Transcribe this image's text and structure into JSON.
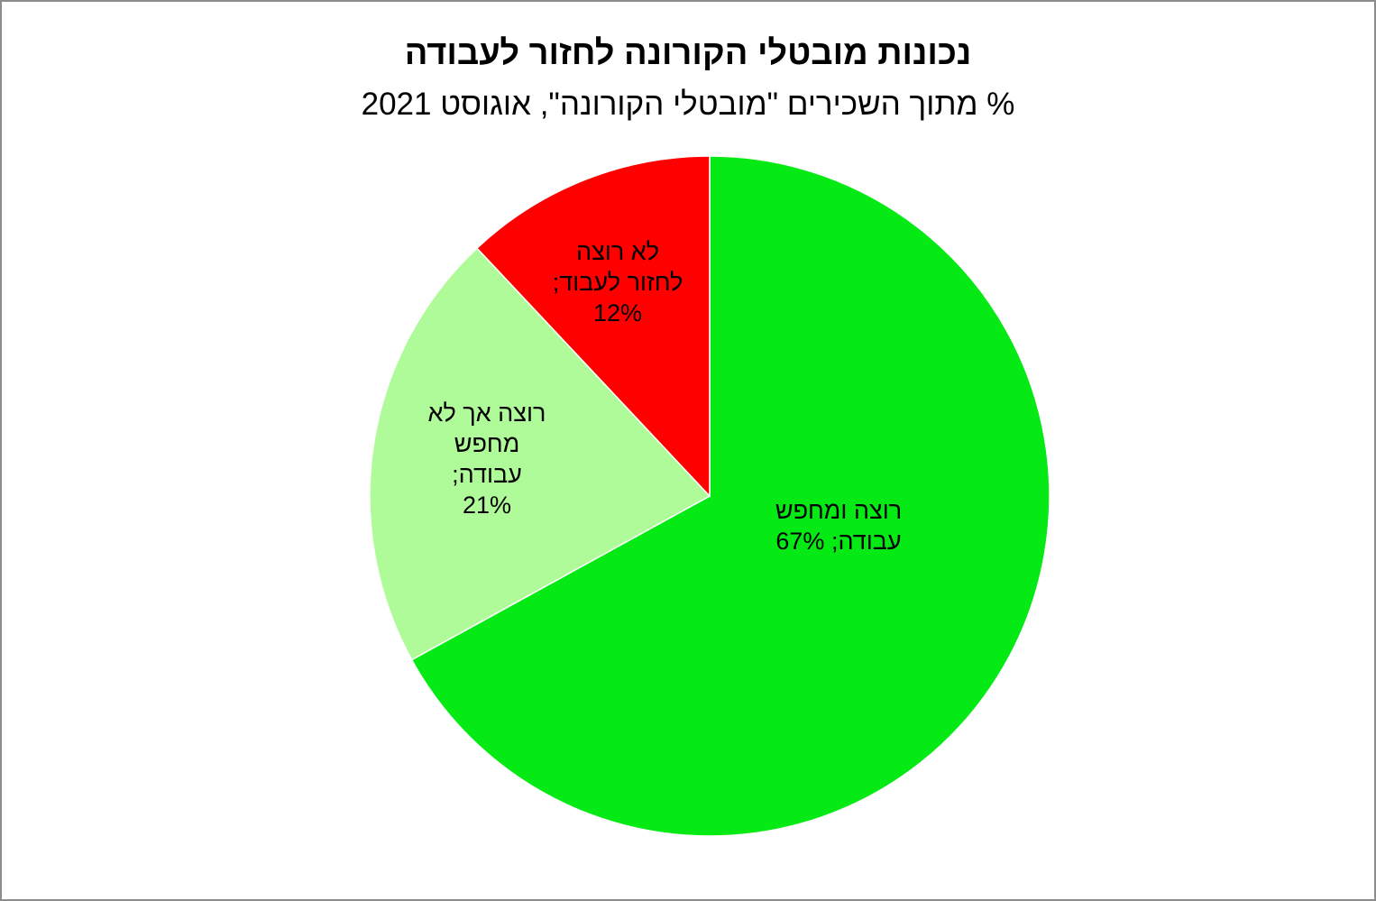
{
  "chart_data": {
    "type": "pie",
    "title": "נכונות מובטלי הקורונה לחזור לעבודה",
    "subtitle": "% מתוך השכירים \"מובטלי הקורונה\", אוגוסט 2021",
    "slices": [
      {
        "label": "רוצה ומחפש עבודה",
        "value": 67,
        "display": [
          "רוצה ומחפש",
          "עבודה; 67%"
        ],
        "color": "#05EA15"
      },
      {
        "label": "רוצה אך לא מחפש עבודה",
        "value": 21,
        "display": [
          "רוצה אך לא",
          "מחפש",
          "עבודה;",
          "21%"
        ],
        "color": "#B0FB99"
      },
      {
        "label": "לא רוצה לחזור לעבוד",
        "value": 12,
        "display": [
          "לא רוצה",
          "לחזור לעבוד;",
          "12%"
        ],
        "color": "#FF0000"
      }
    ],
    "start_angle_deg": 0,
    "direction": "clockwise",
    "legend": "none",
    "data_labels": "inside"
  }
}
